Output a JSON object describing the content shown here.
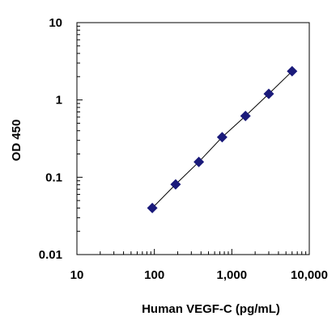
{
  "chart_data": {
    "type": "scatter",
    "xlabel": "Human VEGF-C (pg/mL)",
    "ylabel": "OD 450",
    "x_scale": "log",
    "y_scale": "log",
    "xlim": [
      10,
      10000
    ],
    "ylim": [
      0.01,
      10
    ],
    "x_ticks": [
      {
        "value": 10,
        "label": "10"
      },
      {
        "value": 100,
        "label": "100"
      },
      {
        "value": 1000,
        "label": "1,000"
      },
      {
        "value": 10000,
        "label": "10,000"
      }
    ],
    "y_ticks": [
      {
        "value": 0.01,
        "label": "0.01"
      },
      {
        "value": 0.1,
        "label": "0.1"
      },
      {
        "value": 1,
        "label": "1"
      },
      {
        "value": 10,
        "label": "10"
      }
    ],
    "grid": false,
    "marker_color": "#1a1a7a",
    "line_color": "#000000",
    "series": [
      {
        "x": [
          94,
          188,
          375,
          750,
          1500,
          3000,
          6000
        ],
        "y": [
          0.04,
          0.081,
          0.158,
          0.33,
          0.62,
          1.2,
          2.35
        ]
      }
    ]
  }
}
